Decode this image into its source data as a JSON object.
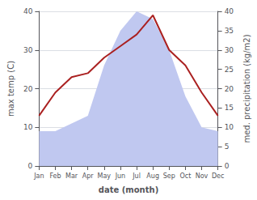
{
  "chart_data": {
    "type": "line",
    "categories": [
      "Jan",
      "Feb",
      "Mar",
      "Apr",
      "May",
      "Jun",
      "Jul",
      "Aug",
      "Sep",
      "Oct",
      "Nov",
      "Dec"
    ],
    "series": [
      {
        "type": "area",
        "axis": "y2",
        "color": "#c0c8f0",
        "values": [
          9,
          9,
          11,
          13,
          26,
          35,
          40,
          38,
          30,
          18,
          10,
          9
        ]
      },
      {
        "type": "line",
        "color": "#aa2020",
        "values": [
          13,
          19,
          23,
          24,
          28,
          31,
          34,
          39,
          30,
          26,
          19,
          13
        ]
      }
    ],
    "xlabel": "date (month)",
    "ylabel": "max temp (C)",
    "y2label": "med. precipitation (kg/m2)",
    "ylim": [
      0,
      40
    ],
    "yticks": [
      0,
      10,
      20,
      30,
      40
    ],
    "y2lim": [
      0,
      40
    ],
    "y2ticks": [
      0,
      5,
      10,
      15,
      20,
      25,
      30,
      35,
      40
    ],
    "grid": true
  }
}
